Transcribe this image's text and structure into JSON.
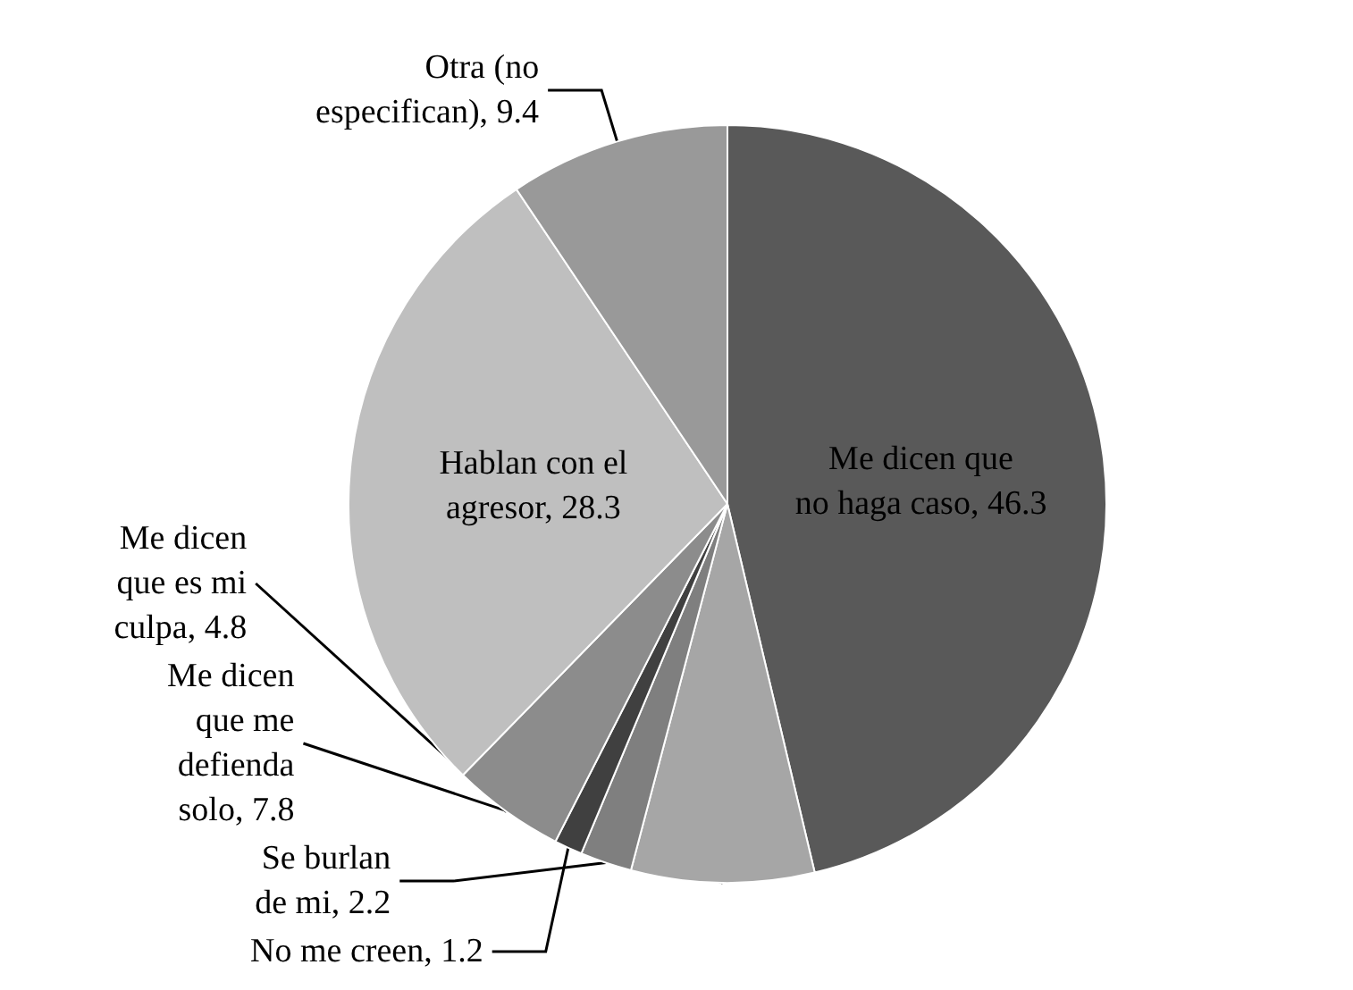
{
  "chart_data": {
    "type": "pie",
    "categories": [
      "Me dicen que no haga caso",
      "Me dicen que me defienda solo",
      "Se burlan de mi",
      "No me creen",
      "Me dicen que es mi culpa",
      "Hablan con el agresor",
      "Otra (no especifican)"
    ],
    "value_labels": [
      "46.3",
      "7.8",
      "2.2",
      "1.2",
      "4.8",
      "28.3",
      "9.4"
    ],
    "values": [
      46.3,
      7.8,
      2.2,
      1.2,
      4.8,
      28.3,
      9.4
    ],
    "colors": [
      "#595959",
      "#a6a6a6",
      "#7f7f7f",
      "#404040",
      "#8c8c8c",
      "#bfbfbf",
      "#999999"
    ],
    "legend": false
  }
}
